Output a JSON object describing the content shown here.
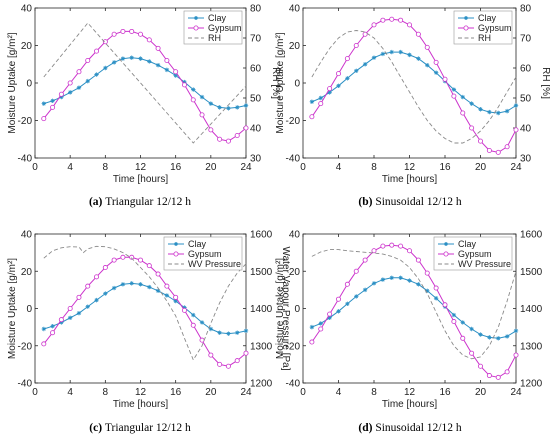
{
  "colors": {
    "clay": "#2a8fc4",
    "gypsum": "#cc33cc",
    "ref": "#8a8a8a",
    "rh_axis": "#1f7aa8"
  },
  "chart_data": [
    {
      "type": "line",
      "caption": {
        "prefix": "(a)",
        "text": "Triangular 12/12 h"
      },
      "xlabel": "Time [hours]",
      "ylabel": "Moisture Uptake [g/m²]",
      "y2label": "RH [%]",
      "xlim": [
        0,
        24
      ],
      "ylim": [
        -40,
        40
      ],
      "y2lim": [
        30,
        80
      ],
      "xticks": [
        0,
        4,
        8,
        12,
        16,
        20,
        24
      ],
      "yticks": [
        -40,
        -20,
        0,
        20,
        40
      ],
      "y2ticks": [
        30,
        40,
        50,
        60,
        70,
        80
      ],
      "legend": {
        "position": "top-right",
        "entries": [
          "Clay",
          "Gypsum",
          "RH"
        ]
      },
      "grid": false,
      "series": [
        {
          "name": "Clay",
          "axis": "left",
          "style": "marker-star",
          "x": [
            1,
            2,
            3,
            4,
            5,
            6,
            7,
            8,
            9,
            10,
            11,
            12,
            13,
            14,
            15,
            16,
            17,
            18,
            19,
            20,
            21,
            22,
            23,
            24
          ],
          "values": [
            -11,
            -9.5,
            -7.5,
            -5,
            -2.5,
            1,
            4.5,
            8,
            11,
            13,
            13.5,
            13,
            11.5,
            9.5,
            7,
            4,
            0.5,
            -3.5,
            -7.5,
            -11,
            -13,
            -13.5,
            -13,
            -12
          ]
        },
        {
          "name": "Gypsum",
          "axis": "left",
          "style": "marker-circle",
          "x": [
            1,
            2,
            3,
            4,
            5,
            6,
            7,
            8,
            9,
            10,
            11,
            12,
            13,
            14,
            15,
            16,
            17,
            18,
            19,
            20,
            21,
            22,
            23,
            24
          ],
          "values": [
            -19,
            -13,
            -6,
            0,
            6,
            12,
            17,
            22,
            26,
            27.5,
            27.5,
            26,
            23,
            18.5,
            12,
            6,
            -1,
            -9,
            -17,
            -25,
            -30,
            -31,
            -28,
            -24
          ]
        },
        {
          "name": "RH",
          "axis": "right",
          "style": "dashed",
          "x": [
            1,
            6,
            18,
            24
          ],
          "values": [
            57,
            75,
            35,
            54
          ]
        }
      ]
    },
    {
      "type": "line",
      "caption": {
        "prefix": "(b)",
        "text": "Sinusoidal 12/12 h"
      },
      "xlabel": "Time [hours]",
      "ylabel": "Moisture Uptake [g/m²]",
      "y2label": "RH [%]",
      "xlim": [
        0,
        24
      ],
      "ylim": [
        -40,
        40
      ],
      "y2lim": [
        30,
        80
      ],
      "xticks": [
        0,
        4,
        8,
        12,
        16,
        20,
        24
      ],
      "yticks": [
        -40,
        -20,
        0,
        20,
        40
      ],
      "y2ticks": [
        30,
        40,
        50,
        60,
        70,
        80
      ],
      "legend": {
        "position": "top-right",
        "entries": [
          "Clay",
          "Gypsum",
          "RH"
        ]
      },
      "grid": false,
      "series": [
        {
          "name": "Clay",
          "axis": "left",
          "style": "marker-star",
          "x": [
            1,
            2,
            3,
            4,
            5,
            6,
            7,
            8,
            9,
            10,
            11,
            12,
            13,
            14,
            15,
            16,
            17,
            18,
            19,
            20,
            21,
            22,
            23,
            24
          ],
          "values": [
            -10,
            -8,
            -5,
            -1.5,
            2.5,
            6.5,
            10,
            13.5,
            15.5,
            16.5,
            16.5,
            15,
            13,
            9.5,
            5.5,
            1,
            -3.5,
            -7.5,
            -11,
            -14,
            -15.5,
            -16,
            -15,
            -12
          ]
        },
        {
          "name": "Gypsum",
          "axis": "left",
          "style": "marker-circle",
          "x": [
            1,
            2,
            3,
            4,
            5,
            6,
            7,
            8,
            9,
            10,
            11,
            12,
            13,
            14,
            15,
            16,
            17,
            18,
            19,
            20,
            21,
            22,
            23,
            24
          ],
          "values": [
            -18,
            -11,
            -3,
            5,
            13,
            20,
            26,
            31,
            33.5,
            34,
            33.5,
            31,
            26,
            19,
            11,
            2,
            -7,
            -16,
            -24,
            -31,
            -36,
            -37,
            -34,
            -25
          ]
        },
        {
          "name": "RH",
          "axis": "right",
          "style": "dashed",
          "x": [
            1,
            2,
            3,
            4,
            5,
            6,
            7,
            8,
            9,
            10,
            11,
            12,
            13,
            14,
            15,
            16,
            17,
            18,
            19,
            20,
            21,
            22,
            23,
            24
          ],
          "values": [
            57,
            62,
            66.5,
            70,
            72,
            72.5,
            72,
            70,
            66.5,
            62,
            57,
            52,
            47,
            42.5,
            39,
            36.5,
            35,
            35,
            36.5,
            39,
            42.5,
            47,
            52,
            57
          ]
        }
      ]
    },
    {
      "type": "line",
      "caption": {
        "prefix": "(c)",
        "text": "Triangular 12/12 h"
      },
      "xlabel": "Time [hours]",
      "ylabel": "Moisture Uptake [g/m²]",
      "y2label": "Water Vapour Pressure [Pa]",
      "xlim": [
        0,
        24
      ],
      "ylim": [
        -40,
        40
      ],
      "y2lim": [
        1200,
        1600
      ],
      "xticks": [
        0,
        4,
        8,
        12,
        16,
        20,
        24
      ],
      "yticks": [
        -40,
        -20,
        0,
        20,
        40
      ],
      "y2ticks": [
        1200,
        1300,
        1400,
        1500,
        1600
      ],
      "legend": {
        "position": "top-right",
        "entries": [
          "Clay",
          "Gypsum",
          "WV Pressure"
        ]
      },
      "grid": false,
      "series": [
        {
          "name": "Clay",
          "axis": "left",
          "style": "marker-star",
          "x": [
            1,
            2,
            3,
            4,
            5,
            6,
            7,
            8,
            9,
            10,
            11,
            12,
            13,
            14,
            15,
            16,
            17,
            18,
            19,
            20,
            21,
            22,
            23,
            24
          ],
          "values": [
            -11,
            -9.5,
            -7.5,
            -5,
            -2.5,
            1,
            4.5,
            8,
            11,
            13,
            13.5,
            13,
            11.5,
            9.5,
            7,
            4,
            0.5,
            -3.5,
            -7.5,
            -11,
            -13,
            -13.5,
            -13,
            -12
          ]
        },
        {
          "name": "Gypsum",
          "axis": "left",
          "style": "marker-circle",
          "x": [
            1,
            2,
            3,
            4,
            5,
            6,
            7,
            8,
            9,
            10,
            11,
            12,
            13,
            14,
            15,
            16,
            17,
            18,
            19,
            20,
            21,
            22,
            23,
            24
          ],
          "values": [
            -19,
            -13,
            -6,
            0,
            6,
            12,
            17,
            22,
            26,
            27.5,
            27.5,
            26,
            23,
            18.5,
            12,
            6,
            -1,
            -9,
            -17,
            -25,
            -30,
            -31,
            -28,
            -24
          ]
        },
        {
          "name": "WV Pressure",
          "axis": "right",
          "style": "dashed",
          "x": [
            1,
            2,
            3,
            4,
            5,
            5.5,
            6,
            7,
            8,
            9,
            10,
            11,
            12,
            13,
            14,
            15,
            16,
            17,
            18,
            19,
            20,
            21,
            22,
            23,
            24
          ],
          "values": [
            1535,
            1555,
            1563,
            1566,
            1565,
            1550,
            1560,
            1567,
            1566,
            1560,
            1550,
            1535,
            1510,
            1485,
            1455,
            1420,
            1380,
            1320,
            1262,
            1300,
            1360,
            1415,
            1460,
            1495,
            1520
          ]
        }
      ]
    },
    {
      "type": "line",
      "caption": {
        "prefix": "(d)",
        "text": "Sinusoidal 12/12 h"
      },
      "xlabel": "Time [hours]",
      "ylabel": "Moisture Uptake [g/m²]",
      "y2label": "Water Vapour Pressure [Pa]",
      "xlim": [
        0,
        24
      ],
      "ylim": [
        -40,
        40
      ],
      "y2lim": [
        1200,
        1600
      ],
      "xticks": [
        0,
        4,
        8,
        12,
        16,
        20,
        24
      ],
      "yticks": [
        -40,
        -20,
        0,
        20,
        40
      ],
      "y2ticks": [
        1200,
        1300,
        1400,
        1500,
        1600
      ],
      "legend": {
        "position": "top-right",
        "entries": [
          "Clay",
          "Gypsum",
          "WV Pressure"
        ]
      },
      "grid": false,
      "series": [
        {
          "name": "Clay",
          "axis": "left",
          "style": "marker-star",
          "x": [
            1,
            2,
            3,
            4,
            5,
            6,
            7,
            8,
            9,
            10,
            11,
            12,
            13,
            14,
            15,
            16,
            17,
            18,
            19,
            20,
            21,
            22,
            23,
            24
          ],
          "values": [
            -10,
            -8,
            -5,
            -1.5,
            2.5,
            6.5,
            10,
            13.5,
            15.5,
            16.5,
            16.5,
            15,
            13,
            9.5,
            5.5,
            1,
            -3.5,
            -7.5,
            -11,
            -14,
            -15.5,
            -16,
            -15,
            -12
          ]
        },
        {
          "name": "Gypsum",
          "axis": "left",
          "style": "marker-circle",
          "x": [
            1,
            2,
            3,
            4,
            5,
            6,
            7,
            8,
            9,
            10,
            11,
            12,
            13,
            14,
            15,
            16,
            17,
            18,
            19,
            20,
            21,
            22,
            23,
            24
          ],
          "values": [
            -18,
            -11,
            -3,
            5,
            13,
            20,
            26,
            31,
            33.5,
            34,
            33.5,
            31,
            26,
            19,
            11,
            2,
            -7,
            -16,
            -24,
            -31,
            -36,
            -37,
            -34,
            -25
          ]
        },
        {
          "name": "WV Pressure",
          "axis": "right",
          "style": "dashed",
          "x": [
            1,
            2,
            3,
            4,
            5,
            6,
            7,
            8,
            9,
            10,
            11,
            12,
            13,
            14,
            15,
            16,
            17,
            18,
            19,
            20,
            21,
            22,
            23,
            24
          ],
          "values": [
            1540,
            1552,
            1558,
            1558,
            1555,
            1553,
            1551,
            1549,
            1546,
            1540,
            1530,
            1510,
            1480,
            1440,
            1390,
            1340,
            1300,
            1275,
            1265,
            1270,
            1300,
            1350,
            1420,
            1500
          ]
        }
      ]
    }
  ]
}
